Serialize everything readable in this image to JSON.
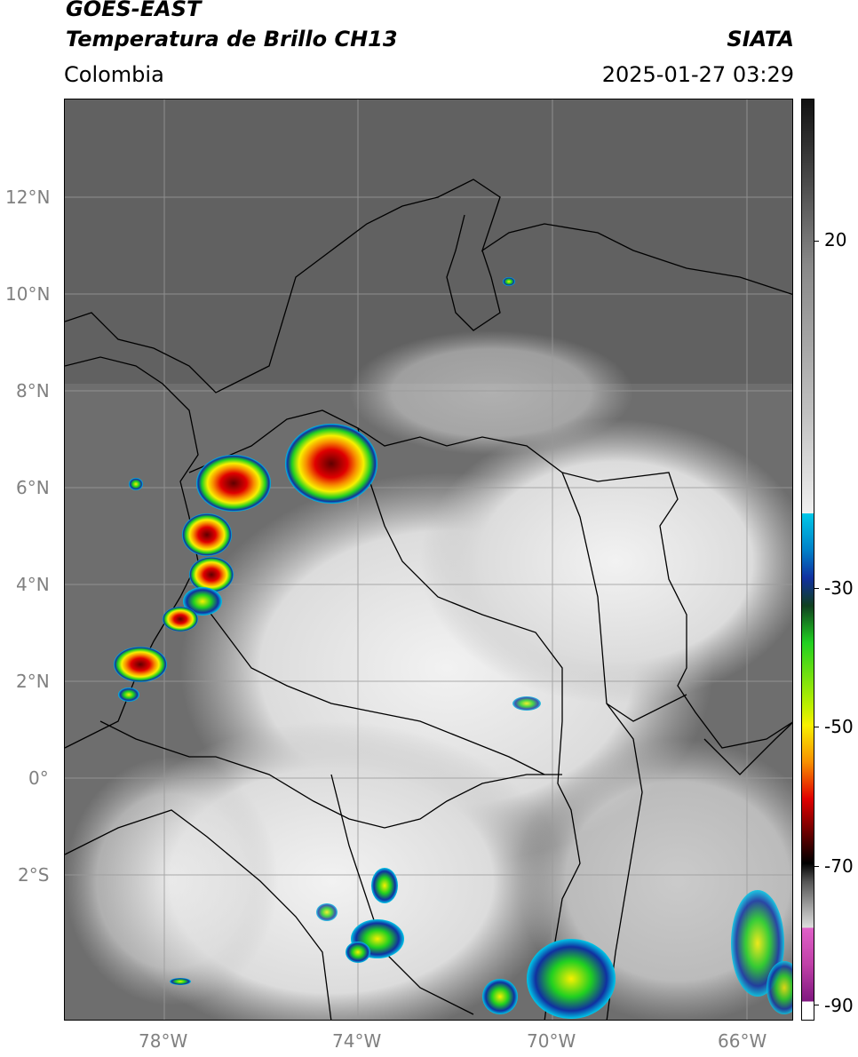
{
  "header": {
    "title_line1": "GOES-EAST",
    "title_line2": "Temperatura de Brillo CH13",
    "region": "Colombia",
    "organization": "SIATA",
    "datetime": "2025-01-27 03:29"
  },
  "map": {
    "lat_ticks": [
      "12°N",
      "10°N",
      "8°N",
      "6°N",
      "4°N",
      "2°N",
      "0°",
      "2°S"
    ],
    "lon_ticks": [
      "78°W",
      "74°W",
      "70°W",
      "66°W"
    ]
  },
  "colorbar": {
    "labels": [
      "20",
      "-30",
      "-50",
      "-70",
      "-90"
    ],
    "colors": {
      "warm_top": "#111111",
      "gray_mid": "#888888",
      "light": "#f0f0f0",
      "cyan": "#00c8e8",
      "blue": "#1030a0",
      "green": "#20d020",
      "yellow": "#f8f000",
      "orange": "#f89000",
      "red": "#e00000",
      "dark_red": "#600000",
      "pink": "#e060c8",
      "purple": "#801880"
    }
  }
}
